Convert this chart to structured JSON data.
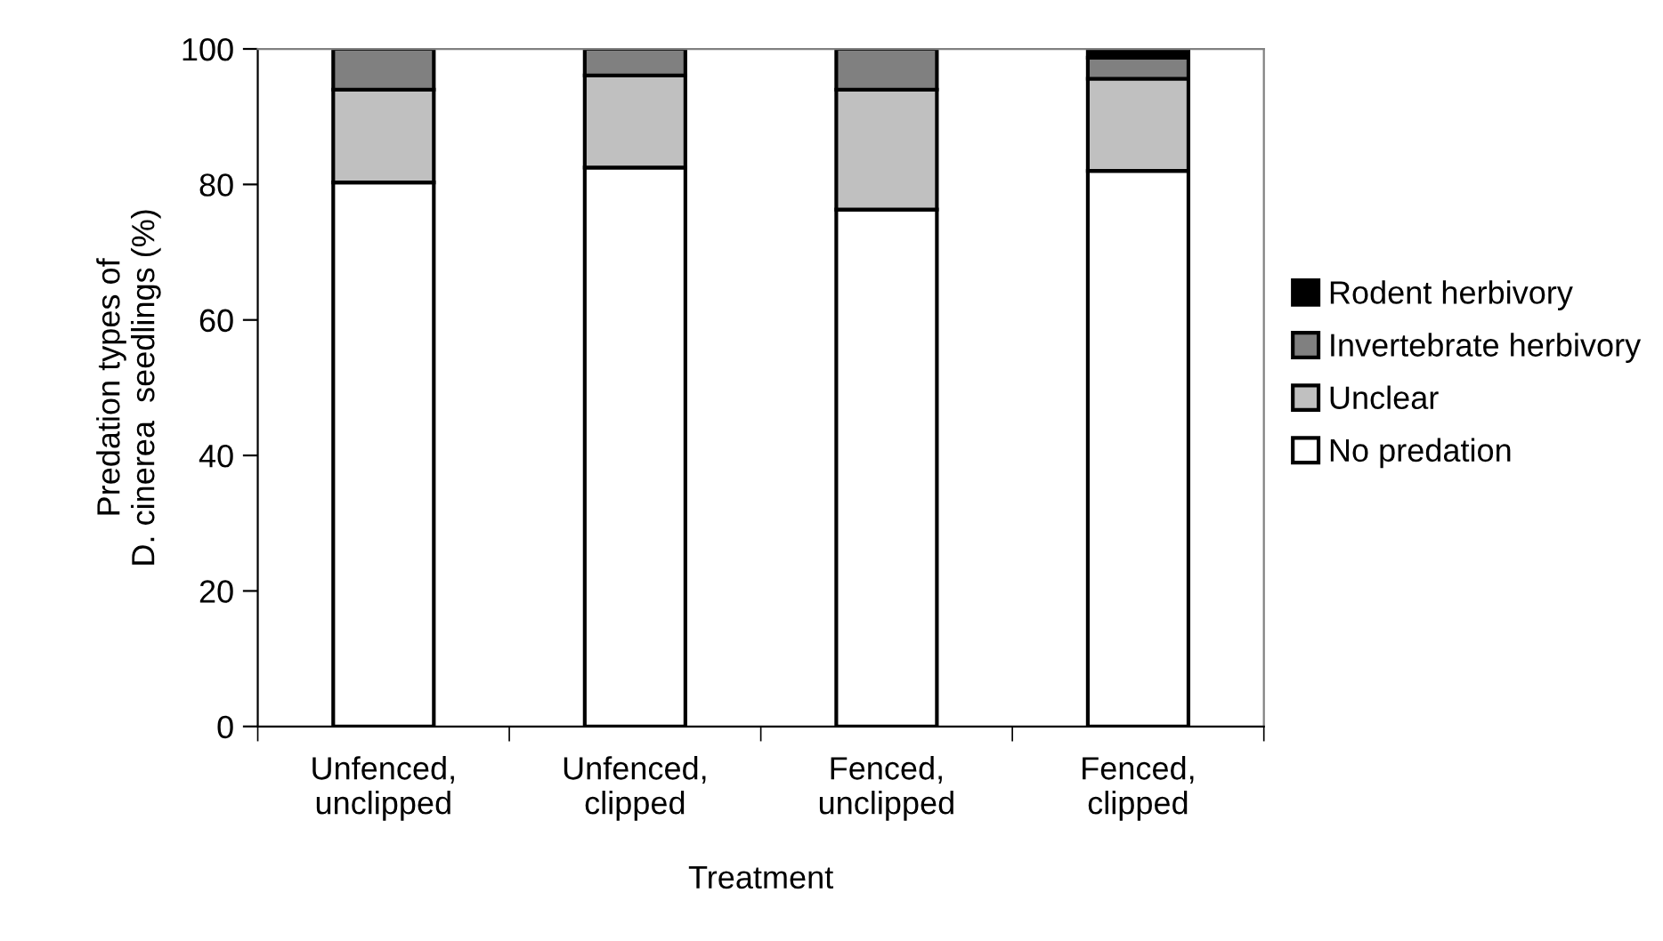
{
  "chart_data": {
    "type": "bar",
    "stacked": true,
    "xlabel": "Treatment",
    "ylabel": "Predation types of\nD. cinerea  seedlings (%)",
    "categories": [
      "Unfenced,\nunclipped",
      "Unfenced,\nclipped",
      "Fenced,\nunclipped",
      "Fenced,\nclipped"
    ],
    "series": [
      {
        "name": "No predation",
        "color": "#ffffff",
        "values": [
          80.3,
          82.5,
          76.3,
          82.0
        ]
      },
      {
        "name": "Unclear",
        "color": "#c0c0c0",
        "values": [
          13.7,
          13.6,
          17.7,
          13.6
        ]
      },
      {
        "name": "Invertebrate herbivory",
        "color": "#808080",
        "values": [
          6.0,
          3.9,
          6.0,
          3.1
        ]
      },
      {
        "name": "Rodent herbivory",
        "color": "#000000",
        "values": [
          0,
          0,
          0,
          1.3
        ]
      }
    ],
    "ylim": [
      0,
      100
    ],
    "yticks": [
      0,
      20,
      40,
      60,
      80,
      100
    ],
    "grid": false,
    "legend": "right"
  }
}
